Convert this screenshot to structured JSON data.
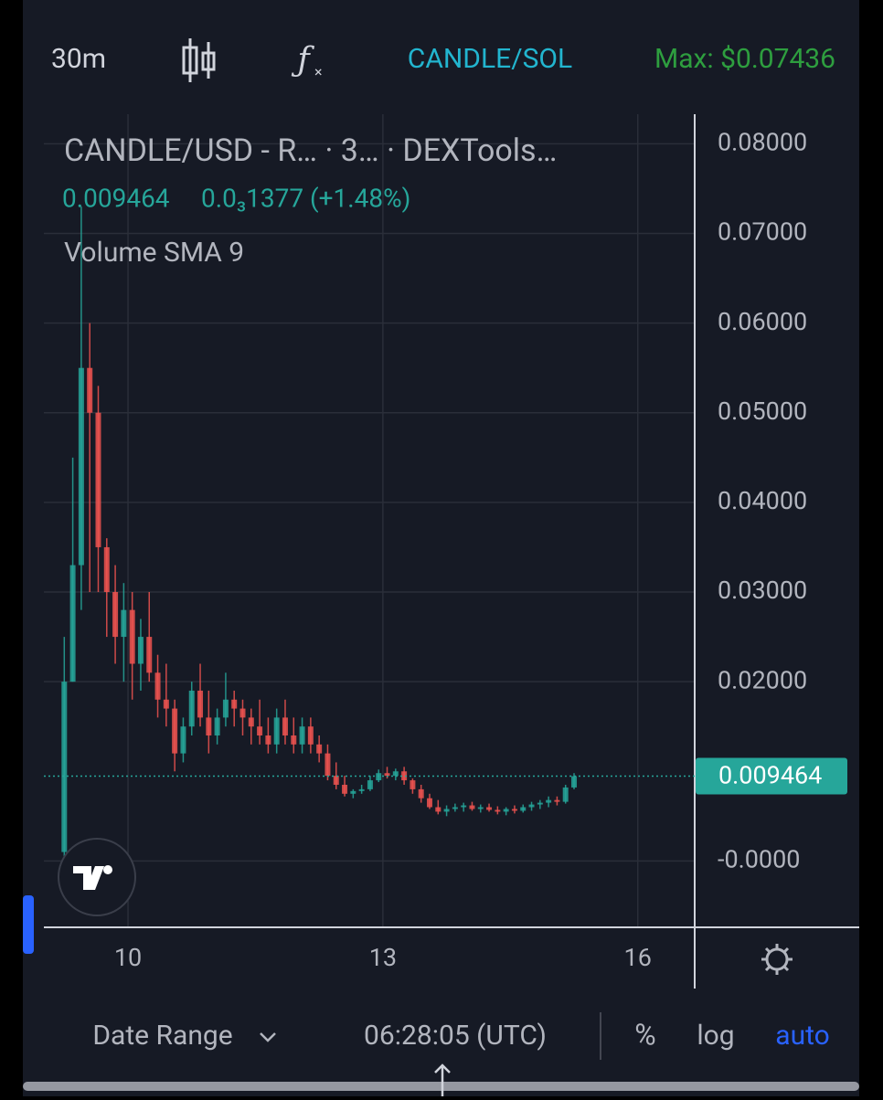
{
  "toolbar": {
    "interval": "30m",
    "pair": "CANDLE/SOL",
    "max": "Max: $0.07436"
  },
  "chart_data": {
    "type": "candlestick",
    "title": "CANDLE/USD - R…   · 3… · DEXTools…",
    "ohlc_close": 0.009464,
    "change_label": "0.0₃1377 (+1.48%)",
    "indicator": "Volume SMA 9",
    "up_color": "#26a69a",
    "down_color": "#ef5350",
    "x": [
      9.25,
      9.35,
      9.45,
      9.55,
      9.65,
      9.75,
      9.85,
      9.95,
      10.05,
      10.15,
      10.25,
      10.35,
      10.45,
      10.55,
      10.65,
      10.75,
      10.85,
      10.95,
      11.05,
      11.15,
      11.25,
      11.35,
      11.45,
      11.55,
      11.65,
      11.75,
      11.85,
      11.95,
      12.05,
      12.15,
      12.25,
      12.35,
      12.45,
      12.55,
      12.65,
      12.75,
      12.85,
      12.95,
      13.05,
      13.15,
      13.25,
      13.35,
      13.45,
      13.55,
      13.65,
      13.75,
      13.85,
      13.95,
      14.05,
      14.15,
      14.25,
      14.35,
      14.45,
      14.55,
      14.65,
      14.75,
      14.85,
      14.95,
      15.05,
      15.15,
      15.25
    ],
    "open": [
      0.001,
      0.02,
      0.033,
      0.055,
      0.05,
      0.035,
      0.03,
      0.025,
      0.028,
      0.022,
      0.025,
      0.021,
      0.018,
      0.017,
      0.012,
      0.015,
      0.019,
      0.016,
      0.014,
      0.016,
      0.018,
      0.017,
      0.016,
      0.015,
      0.014,
      0.013,
      0.016,
      0.014,
      0.013,
      0.015,
      0.013,
      0.012,
      0.0095,
      0.0085,
      0.0075,
      0.0078,
      0.008,
      0.009,
      0.0098,
      0.0095,
      0.01,
      0.009,
      0.008,
      0.007,
      0.006,
      0.0055,
      0.0058,
      0.006,
      0.0062,
      0.0058,
      0.006,
      0.0057,
      0.0055,
      0.0058,
      0.0056,
      0.006,
      0.0063,
      0.0065,
      0.0068,
      0.0066,
      0.0082
    ],
    "high": [
      0.025,
      0.045,
      0.073,
      0.06,
      0.053,
      0.036,
      0.033,
      0.031,
      0.03,
      0.027,
      0.03,
      0.023,
      0.022,
      0.018,
      0.016,
      0.02,
      0.022,
      0.019,
      0.017,
      0.021,
      0.019,
      0.018,
      0.017,
      0.018,
      0.016,
      0.017,
      0.018,
      0.016,
      0.016,
      0.016,
      0.014,
      0.013,
      0.011,
      0.0095,
      0.008,
      0.0085,
      0.0095,
      0.0102,
      0.0105,
      0.0103,
      0.0105,
      0.0092,
      0.0085,
      0.0075,
      0.0068,
      0.0062,
      0.0064,
      0.0065,
      0.0066,
      0.0063,
      0.0064,
      0.0061,
      0.006,
      0.0062,
      0.0063,
      0.0066,
      0.0068,
      0.0072,
      0.0072,
      0.0085,
      0.0098
    ],
    "low": [
      0.0,
      0.02,
      0.028,
      0.03,
      0.03,
      0.025,
      0.022,
      0.02,
      0.018,
      0.019,
      0.02,
      0.016,
      0.015,
      0.01,
      0.011,
      0.014,
      0.015,
      0.012,
      0.013,
      0.015,
      0.015,
      0.014,
      0.013,
      0.013,
      0.012,
      0.012,
      0.013,
      0.012,
      0.012,
      0.012,
      0.011,
      0.009,
      0.008,
      0.0072,
      0.007,
      0.0075,
      0.0078,
      0.0088,
      0.0092,
      0.009,
      0.0085,
      0.0075,
      0.0065,
      0.0058,
      0.0052,
      0.005,
      0.0055,
      0.0055,
      0.0056,
      0.0054,
      0.0055,
      0.0052,
      0.0051,
      0.0053,
      0.0054,
      0.0056,
      0.0058,
      0.006,
      0.0062,
      0.0064,
      0.008
    ],
    "close": [
      0.02,
      0.033,
      0.055,
      0.05,
      0.035,
      0.03,
      0.025,
      0.028,
      0.022,
      0.025,
      0.021,
      0.018,
      0.017,
      0.012,
      0.015,
      0.019,
      0.016,
      0.014,
      0.016,
      0.018,
      0.017,
      0.016,
      0.015,
      0.014,
      0.013,
      0.016,
      0.014,
      0.013,
      0.015,
      0.013,
      0.012,
      0.0095,
      0.0085,
      0.0075,
      0.0078,
      0.008,
      0.009,
      0.0098,
      0.0095,
      0.01,
      0.009,
      0.008,
      0.007,
      0.006,
      0.0055,
      0.0058,
      0.006,
      0.0062,
      0.0058,
      0.006,
      0.0057,
      0.0055,
      0.0058,
      0.0056,
      0.006,
      0.0063,
      0.0065,
      0.0068,
      0.0066,
      0.0082,
      0.009464
    ],
    "price_line": 0.009464,
    "xlim": [
      9.01,
      16.67
    ],
    "xticks": [
      10,
      13,
      16
    ],
    "ylim": [
      -0.0074,
      0.0833
    ],
    "yticks": [
      {
        "value": 0.08,
        "label": "0.08000"
      },
      {
        "value": 0.07,
        "label": "0.07000"
      },
      {
        "value": 0.06,
        "label": "0.06000"
      },
      {
        "value": 0.05,
        "label": "0.05000"
      },
      {
        "value": 0.04,
        "label": "0.04000"
      },
      {
        "value": 0.03,
        "label": "0.03000"
      },
      {
        "value": 0.02,
        "label": "0.02000"
      },
      {
        "value": 0,
        "label": "-0.0000"
      }
    ],
    "grid": true
  },
  "bottom_bar": {
    "date_range": "Date Range",
    "time": "06:28:05 (UTC)",
    "percent": "%",
    "log": "log",
    "auto": "auto"
  }
}
